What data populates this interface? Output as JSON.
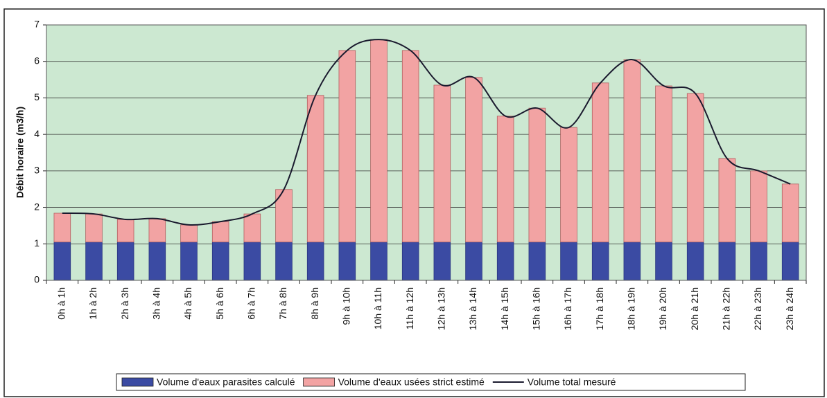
{
  "chart_data": {
    "type": "bar",
    "stacked": true,
    "y_label": "Débit horaire (m3/h)",
    "categories": [
      "0h à 1h",
      "1h à 2h",
      "2h à 3h",
      "3h à 4h",
      "4h à 5h",
      "5h à 6h",
      "6h à 7h",
      "7h à 8h",
      "8h à 9h",
      "9h à 10h",
      "10h à 11h",
      "11h à 12h",
      "12h à 13h",
      "13h à 14h",
      "14h à 15h",
      "15h à 16h",
      "16h à 17h",
      "17h à 18h",
      "18h à 19h",
      "19h à 20h",
      "20h à 21h",
      "21h à 22h",
      "22h à 23h",
      "23h à 24h"
    ],
    "series": [
      {
        "name": "Volume d'eaux parasites calculé",
        "type": "bar",
        "color": "#3b4ba3",
        "values": [
          1.05,
          1.05,
          1.05,
          1.05,
          1.05,
          1.05,
          1.05,
          1.05,
          1.05,
          1.05,
          1.05,
          1.05,
          1.05,
          1.05,
          1.05,
          1.05,
          1.05,
          1.05,
          1.05,
          1.05,
          1.05,
          1.05,
          1.05,
          1.05
        ]
      },
      {
        "name": "Volume d'eaux usées strict estimé",
        "type": "bar",
        "color": "#f2a3a3",
        "values": [
          0.79,
          0.77,
          0.62,
          0.64,
          0.47,
          0.56,
          0.77,
          1.44,
          4.02,
          5.25,
          5.55,
          5.25,
          4.3,
          4.51,
          3.45,
          3.67,
          3.14,
          4.36,
          5.0,
          4.28,
          4.07,
          2.29,
          1.95,
          1.59
        ]
      },
      {
        "name": "Volume total mesuré",
        "type": "line",
        "color": "#1a1a2e",
        "values": [
          1.84,
          1.82,
          1.67,
          1.69,
          1.52,
          1.61,
          1.82,
          2.49,
          5.07,
          6.3,
          6.6,
          6.3,
          5.35,
          5.56,
          4.5,
          4.72,
          4.19,
          5.41,
          6.05,
          5.33,
          5.12,
          3.34,
          3.0,
          2.64
        ]
      }
    ],
    "ylim": [
      0,
      7
    ],
    "yticks": [
      0,
      1,
      2,
      3,
      4,
      5,
      6,
      7
    ],
    "grid": true,
    "legend": "bottom",
    "background": "#cce8d1"
  }
}
